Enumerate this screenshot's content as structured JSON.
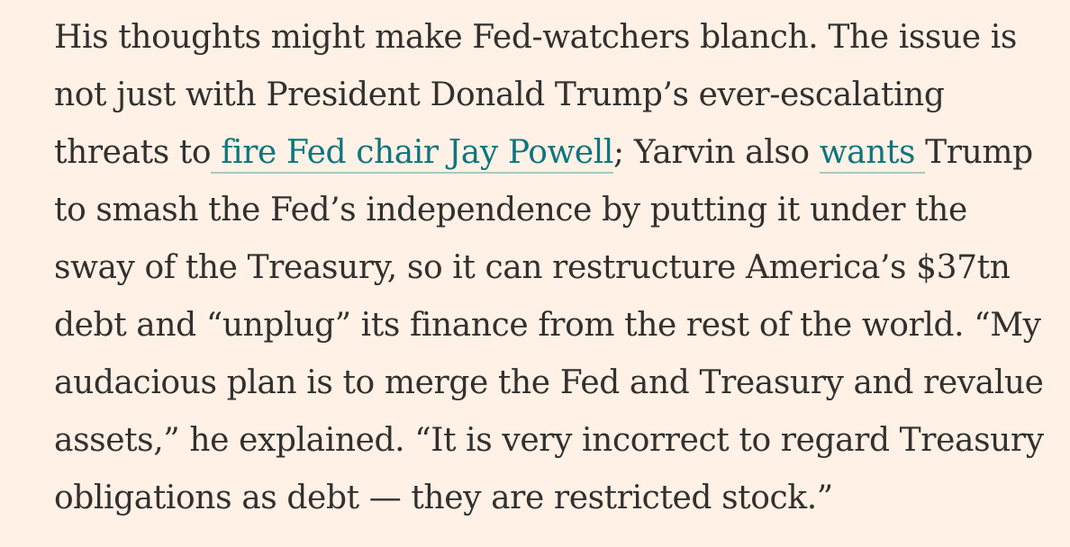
{
  "article": {
    "lines": {
      "l1": "His thoughts might make Fed-watchers blanch. The issue is",
      "l2": "not just with President Donald Trump’s ever-escalating",
      "l3_before": "threats to",
      "l3_link1": " fire Fed chair Jay Powell",
      "l3_middle": "; Yarvin also ",
      "l3_link2": "wants ",
      "l3_after": "Trump",
      "l4": "to smash the Fed’s independence by putting it under the",
      "l5": "sway of the Treasury, so it can restructure America’s $37tn",
      "l6": "debt and “unplug” its finance from the rest of the world. “My",
      "l7": "audacious plan is to merge the Fed and Treasury and revalue",
      "l8": "assets,” he explained. “It is very incorrect to regard Treasury",
      "l9": "obligations as debt — they are restricted stock.”"
    },
    "colors": {
      "background": "#fff1e5",
      "text": "#33302e",
      "link": "#0d7680"
    }
  }
}
